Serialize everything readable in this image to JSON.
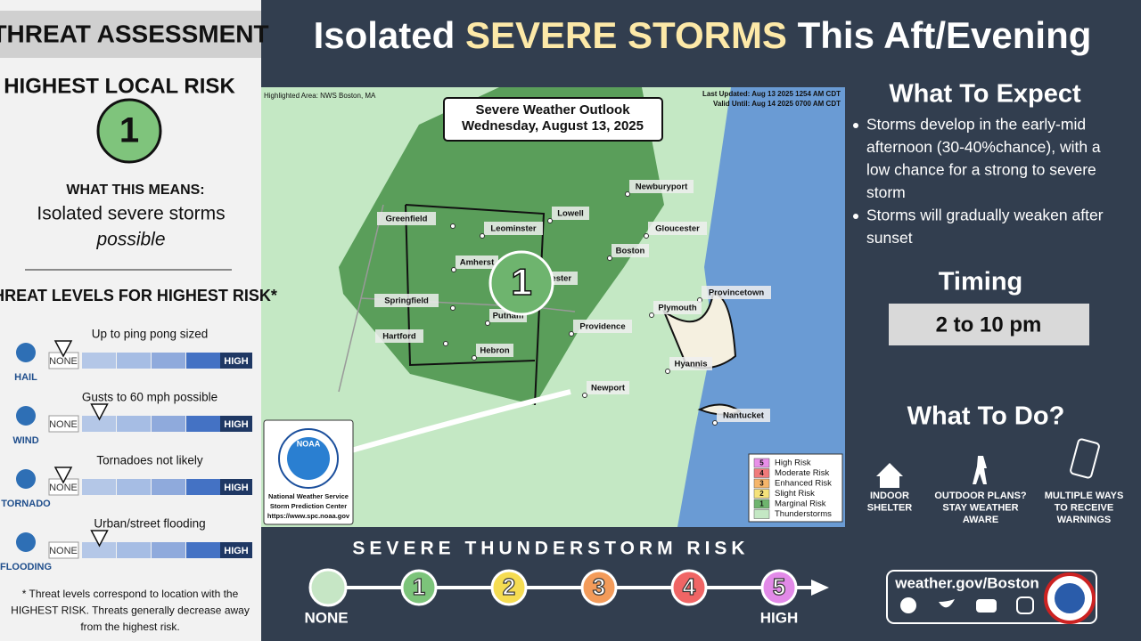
{
  "sidebar": {
    "header": "THREAT ASSESSMENT",
    "risk_label": "HIGHEST LOCAL RISK",
    "risk_value": "1",
    "means_label": "WHAT THIS MEANS:",
    "means_text": "Isolated severe storms",
    "means_italic": "possible",
    "levels_title": "THREAT LEVELS FOR HIGHEST RISK*",
    "none_label": "NONE",
    "high_label": "HIGH",
    "threats": [
      {
        "name": "HAIL",
        "desc": "Up to ping pong sized",
        "level": 0
      },
      {
        "name": "WIND",
        "desc": "Gusts to 60 mph possible",
        "level": 1
      },
      {
        "name": "TORNADO",
        "desc": "Tornadoes not likely",
        "level": 0
      },
      {
        "name": "FLOODING",
        "desc": "Urban/street flooding",
        "level": 1
      }
    ],
    "footnote": [
      "* Threat levels correspond to location with the",
      "HIGHEST RISK. Threats generally decrease away",
      "from the highest risk."
    ]
  },
  "title": {
    "part1": "Isolated ",
    "part2": "SEVERE STORMS",
    "part3": " This Aft/Evening"
  },
  "map": {
    "highlighted": "Highlighted Area: NWS Boston, MA",
    "updated": "Last Updated: Aug 13 2025 1254 AM CDT",
    "valid": "Valid Until: Aug 14 2025 0700 AM CDT",
    "outlook_title": "Severe Weather Outlook",
    "outlook_date": "Wednesday, August 13, 2025",
    "risk_value": "1",
    "cities": [
      "Newburyport",
      "Lowell",
      "Gloucester",
      "Greenfield",
      "Leominster",
      "Boston",
      "Amherst",
      "Worcester",
      "Springfield",
      "Provincetown",
      "Plymouth",
      "Putnam",
      "Providence",
      "Hartford",
      "Hebron",
      "Hyannis",
      "Newport",
      "Nantucket"
    ],
    "legend": [
      {
        "level": "5",
        "name": "High Risk",
        "color": "#e88fe8"
      },
      {
        "level": "4",
        "name": "Moderate Risk",
        "color": "#f07a7a"
      },
      {
        "level": "3",
        "name": "Enhanced Risk",
        "color": "#f5b56a"
      },
      {
        "level": "2",
        "name": "Slight Risk",
        "color": "#f5e27a"
      },
      {
        "level": "1",
        "name": "Marginal Risk",
        "color": "#6eb46e"
      },
      {
        "name": "Thunderstorms",
        "color": "#c4e8c4"
      }
    ],
    "noaa_logo": "NOAA",
    "noaa_lines": [
      "National Weather Service",
      "Storm Prediction Center",
      "https://www.spc.noaa.gov"
    ]
  },
  "expect": {
    "title": "What To Expect",
    "bullets": [
      [
        "Storms develop in the early-mid",
        "afternoon (30-40%chance), with a",
        "low chance for a strong to severe",
        "storm"
      ],
      [
        "Storms will gradually weaken after",
        "sunset"
      ]
    ]
  },
  "timing": {
    "title": "Timing",
    "value": "2 to 10 pm"
  },
  "todo": {
    "title": "What To Do?",
    "items": [
      [
        "INDOOR",
        "SHELTER"
      ],
      [
        "OUTDOOR PLANS?",
        "STAY WEATHER",
        "AWARE"
      ],
      [
        "MULTIPLE WAYS",
        "TO RECEIVE",
        "WARNINGS"
      ]
    ]
  },
  "scale": {
    "title": "SEVERE THUNDERSTORM RISK",
    "none_color": "#c6e6c5",
    "levels": [
      {
        "label": "1",
        "color": "#7cc47a"
      },
      {
        "label": "2",
        "color": "#f5dc52"
      },
      {
        "label": "3",
        "color": "#f39b5a"
      },
      {
        "label": "4",
        "color": "#f06565"
      },
      {
        "label": "5",
        "color": "#e28ae8"
      }
    ],
    "none_label": "NONE",
    "high_label": "HIGH"
  },
  "footer": {
    "url": "weather.gov/Boston"
  }
}
